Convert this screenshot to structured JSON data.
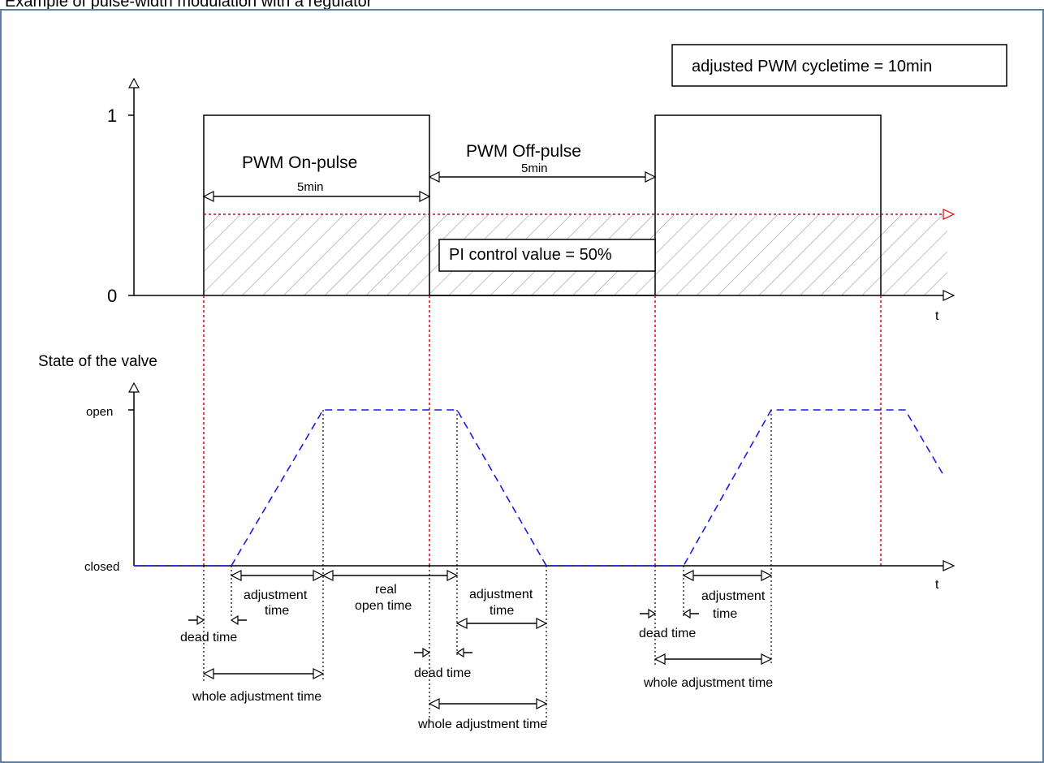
{
  "caption": "Example of pulse-width modulation with a regulator",
  "cycletime_box": "adjusted PWM cycletime = 10min",
  "control_value_box": "PI control value = 50%",
  "top_plot": {
    "y_tick_1": "1",
    "y_tick_0": "0",
    "x_axis_label": "t",
    "on_pulse_label": "PWM On-pulse",
    "on_pulse_duration": "5min",
    "off_pulse_label": "PWM Off-pulse",
    "off_pulse_duration": "5min"
  },
  "bottom_plot": {
    "title": "State of the valve",
    "y_tick_open": "open",
    "y_tick_closed": "closed",
    "x_axis_label": "t",
    "annotations": {
      "adjustment_time_1": [
        "adjustment",
        "time"
      ],
      "real_open_time": [
        "real",
        "open time"
      ],
      "adjustment_time_2": [
        "adjustment",
        "time"
      ],
      "adjustment_time_3": [
        "adjustment",
        "time"
      ],
      "dead_time_1": "dead time",
      "dead_time_2": "dead time",
      "dead_time_3": "dead time",
      "whole_adjustment_time_1": "whole adjustment time",
      "whole_adjustment_time_2": "whole adjustment time",
      "whole_adjustment_time_3": "whole adjustment time"
    }
  },
  "colors": {
    "frame": "#5b7fa6",
    "red_guides": "#e8000b",
    "valve_curve": "#1a1ae6",
    "hatch": "#9a9a9a"
  }
}
